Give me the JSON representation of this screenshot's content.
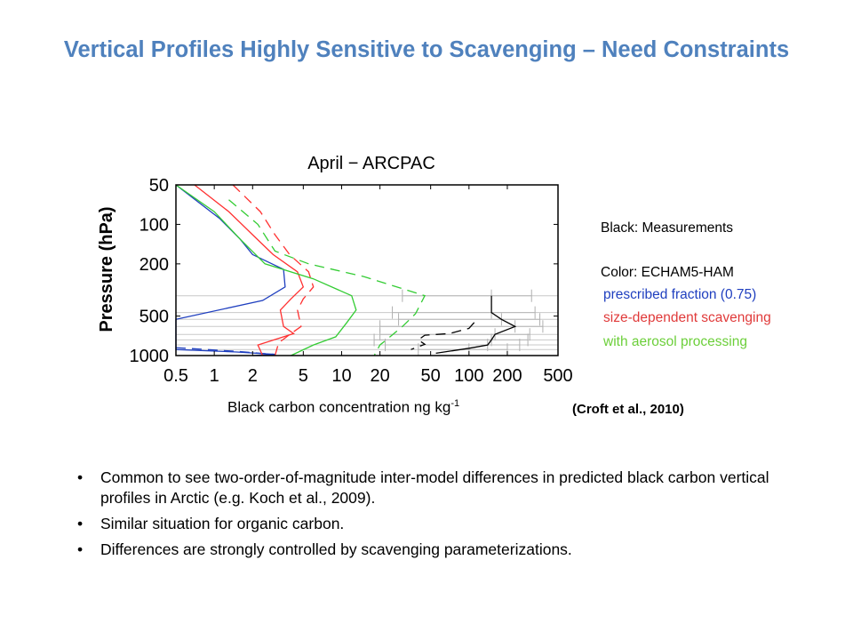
{
  "slide": {
    "title": "Vertical Profiles Highly Sensitive to Scavenging – Need Constraints"
  },
  "legend": {
    "measurements": "Black: Measurements",
    "model": "Color: ECHAM5-HAM",
    "series1": "prescribed fraction (0.75)",
    "series2": "size-dependent  scavenging",
    "series3": "with aerosol processing",
    "colors": {
      "black": "#000000",
      "blue": "#1f3fbf",
      "red": "#ff3030",
      "green": "#33cc33",
      "legend_blue": "#1f3fbf",
      "legend_red": "#e03a3a",
      "legend_green": "#6ccf3a"
    }
  },
  "x_caption": {
    "text": "Black carbon concentration ng kg",
    "sup": "-1"
  },
  "citation": "(Croft et al., 2010)",
  "bullets": [
    "Common to see two-order-of-magnitude inter-model differences in predicted black carbon vertical profiles in Arctic (e.g. Koch et al., 2009).",
    "Similar situation for organic carbon.",
    "Differences are strongly controlled by scavenging parameterizations."
  ],
  "chart_data": {
    "type": "line",
    "title": "April − ARCPAC",
    "xlabel": "",
    "ylabel": "Pressure (hPa)",
    "xscale": "log",
    "yscale": "log",
    "y_inverted": true,
    "xlim": [
      0.5,
      500
    ],
    "ylim": [
      1000,
      50
    ],
    "xticks": [
      0.5,
      1,
      2,
      5,
      10,
      20,
      50,
      100,
      200,
      500
    ],
    "xtick_labels": [
      "0.5",
      "1",
      "2",
      "5",
      "10",
      "20",
      "50",
      "100",
      "200",
      "500"
    ],
    "yticks": [
      50,
      100,
      200,
      500,
      1000
    ],
    "ytick_labels": [
      "50",
      "100",
      "200",
      "500",
      "1000"
    ],
    "measurement_levels": [
      350,
      470,
      530,
      600,
      690,
      760,
      830,
      900
    ],
    "series": [
      {
        "color": "blue",
        "style": "solid",
        "points": [
          [
            0.5,
            50
          ],
          [
            1.1,
            90
          ],
          [
            1.6,
            130
          ],
          [
            2.0,
            170
          ],
          [
            3.5,
            220
          ],
          [
            3.6,
            300
          ],
          [
            2.4,
            380
          ],
          [
            0.5,
            530
          ],
          [
            0.5,
            900
          ],
          [
            1.5,
            940
          ],
          [
            3.0,
            980
          ],
          [
            2.0,
            1000
          ]
        ]
      },
      {
        "color": "blue",
        "style": "dashed",
        "points": [
          [
            0.5,
            870
          ],
          [
            1.5,
            930
          ],
          [
            3.0,
            980
          ]
        ]
      },
      {
        "color": "red",
        "style": "solid",
        "points": [
          [
            0.7,
            50
          ],
          [
            1.3,
            80
          ],
          [
            2.0,
            120
          ],
          [
            2.9,
            170
          ],
          [
            4.5,
            230
          ],
          [
            5.0,
            300
          ],
          [
            4.0,
            370
          ],
          [
            3.3,
            450
          ],
          [
            3.5,
            600
          ],
          [
            4.2,
            680
          ],
          [
            2.2,
            830
          ],
          [
            2.4,
            1000
          ]
        ]
      },
      {
        "color": "red",
        "style": "dashed",
        "points": [
          [
            1.4,
            50
          ],
          [
            2.3,
            80
          ],
          [
            3.0,
            120
          ],
          [
            3.9,
            170
          ],
          [
            5.5,
            230
          ],
          [
            6.0,
            300
          ],
          [
            5.0,
            370
          ],
          [
            4.5,
            450
          ],
          [
            4.8,
            600
          ],
          [
            4.0,
            680
          ],
          [
            3.2,
            800
          ],
          [
            3.0,
            1000
          ]
        ]
      },
      {
        "color": "green",
        "style": "solid",
        "points": [
          [
            0.5,
            50
          ],
          [
            1.0,
            80
          ],
          [
            1.6,
            130
          ],
          [
            2.5,
            200
          ],
          [
            6.0,
            260
          ],
          [
            12,
            350
          ],
          [
            13,
            450
          ],
          [
            11,
            560
          ],
          [
            9,
            720
          ],
          [
            6,
            830
          ],
          [
            4.0,
            1000
          ]
        ]
      },
      {
        "color": "green",
        "style": "dashed",
        "points": [
          [
            1.3,
            65
          ],
          [
            2.2,
            100
          ],
          [
            3.0,
            160
          ],
          [
            5.5,
            200
          ],
          [
            15,
            250
          ],
          [
            45,
            350
          ],
          [
            38,
            480
          ],
          [
            30,
            600
          ],
          [
            24,
            720
          ],
          [
            20,
            830
          ],
          [
            18,
            1000
          ]
        ]
      },
      {
        "color": "black",
        "style": "solid",
        "points": [
          [
            150,
            350
          ],
          [
            150,
            470
          ],
          [
            180,
            530
          ],
          [
            230,
            600
          ],
          [
            160,
            690
          ],
          [
            150,
            760
          ],
          [
            140,
            830
          ],
          [
            100,
            880
          ],
          [
            55,
            960
          ]
        ]
      },
      {
        "color": "black",
        "style": "dashed",
        "points": [
          [
            110,
            560
          ],
          [
            100,
            620
          ],
          [
            70,
            680
          ],
          [
            45,
            700
          ],
          [
            40,
            760
          ],
          [
            45,
            820
          ],
          [
            35,
            900
          ]
        ]
      }
    ],
    "error_bars": [
      {
        "center": 150,
        "low": 30,
        "high": 310,
        "p": 350
      },
      {
        "center": 150,
        "low": 25,
        "high": 330,
        "p": 470
      },
      {
        "center": 180,
        "low": 28,
        "high": 360,
        "p": 530
      },
      {
        "center": 230,
        "low": 20,
        "high": 380,
        "p": 600
      },
      {
        "center": 160,
        "low": 20,
        "high": 300,
        "p": 690
      },
      {
        "center": 150,
        "low": 18,
        "high": 290,
        "p": 760
      },
      {
        "center": 140,
        "low": 22,
        "high": 250,
        "p": 830
      },
      {
        "center": 100,
        "low": 40,
        "high": 200,
        "p": 900
      }
    ]
  }
}
